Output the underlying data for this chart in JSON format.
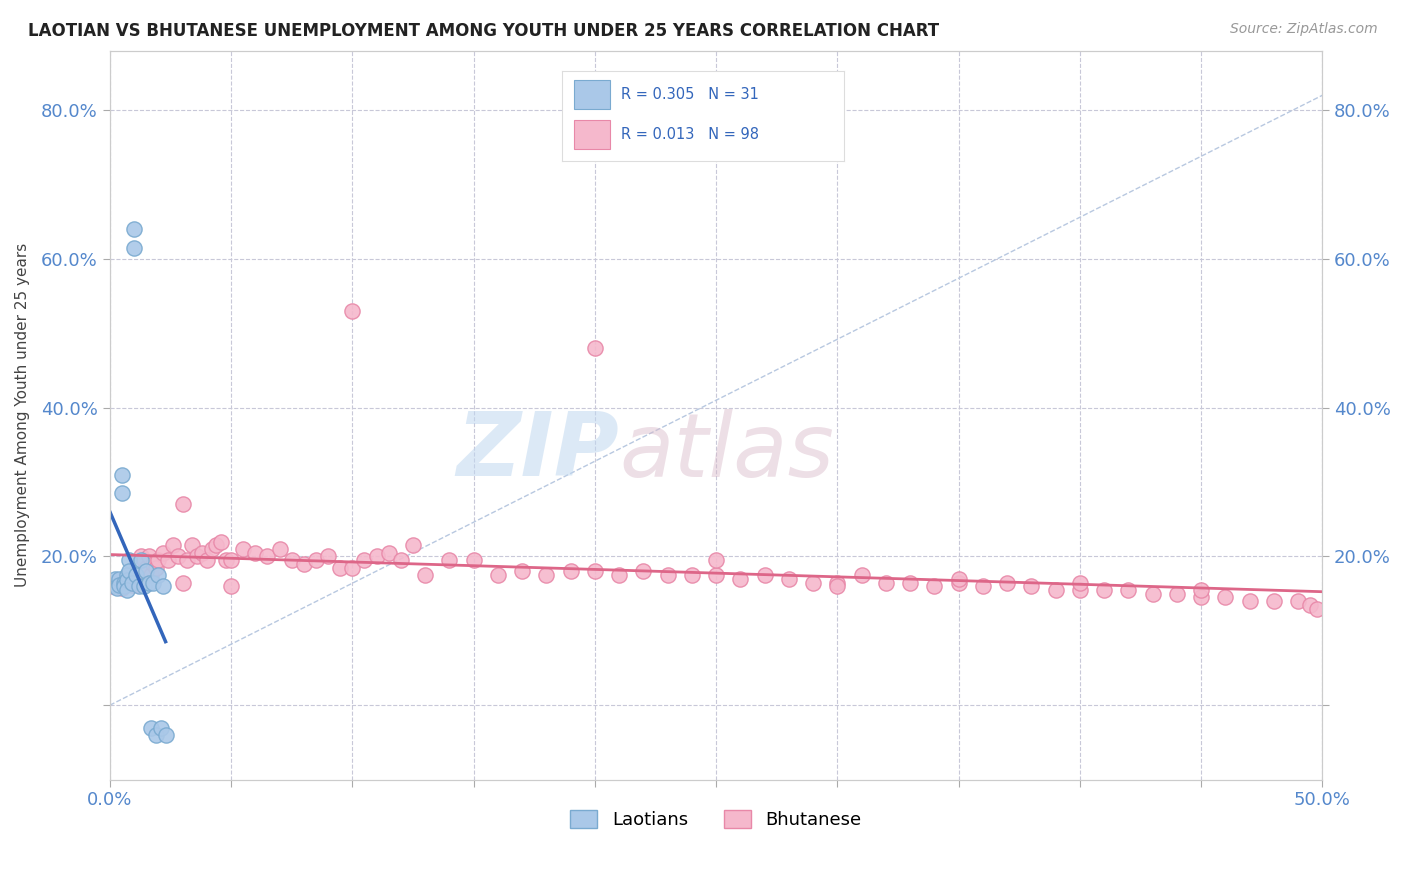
{
  "title": "LAOTIAN VS BHUTANESE UNEMPLOYMENT AMONG YOUTH UNDER 25 YEARS CORRELATION CHART",
  "source": "Source: ZipAtlas.com",
  "ylabel": "Unemployment Among Youth under 25 years",
  "xlim": [
    0.0,
    0.5
  ],
  "ylim": [
    -0.1,
    0.88
  ],
  "laotian_R": 0.305,
  "laotian_N": 31,
  "bhutanese_R": 0.013,
  "bhutanese_N": 98,
  "laotian_color": "#aac8e8",
  "bhutanese_color": "#f5b8cc",
  "laotian_edge_color": "#7aaad0",
  "bhutanese_edge_color": "#e888a8",
  "trend_laotian_color": "#3366bb",
  "trend_bhutanese_color": "#dd6688",
  "background_color": "#ffffff",
  "grid_color": "#cccccc",
  "watermark_zip": "ZIP",
  "watermark_atlas": "atlas",
  "laotian_x": [
    0.001,
    0.002,
    0.003,
    0.003,
    0.004,
    0.004,
    0.005,
    0.005,
    0.006,
    0.006,
    0.007,
    0.007,
    0.007,
    0.008,
    0.008,
    0.009,
    0.01,
    0.01,
    0.011,
    0.012,
    0.013,
    0.014,
    0.015,
    0.016,
    0.017,
    0.018,
    0.019,
    0.02,
    0.021,
    0.022,
    0.023
  ],
  "laotian_y": [
    0.165,
    0.17,
    0.16,
    0.158,
    0.17,
    0.162,
    0.31,
    0.285,
    0.165,
    0.16,
    0.175,
    0.168,
    0.155,
    0.195,
    0.18,
    0.165,
    0.64,
    0.615,
    0.175,
    0.16,
    0.195,
    0.16,
    0.18,
    0.165,
    -0.03,
    0.165,
    -0.04,
    0.175,
    -0.03,
    0.16,
    -0.04
  ],
  "bhutanese_x": [
    0.001,
    0.002,
    0.003,
    0.004,
    0.005,
    0.006,
    0.007,
    0.008,
    0.009,
    0.01,
    0.011,
    0.012,
    0.013,
    0.014,
    0.015,
    0.016,
    0.017,
    0.018,
    0.019,
    0.02,
    0.022,
    0.024,
    0.026,
    0.028,
    0.03,
    0.032,
    0.034,
    0.036,
    0.038,
    0.04,
    0.042,
    0.044,
    0.046,
    0.048,
    0.05,
    0.055,
    0.06,
    0.065,
    0.07,
    0.075,
    0.08,
    0.085,
    0.09,
    0.095,
    0.1,
    0.105,
    0.11,
    0.115,
    0.12,
    0.125,
    0.13,
    0.14,
    0.15,
    0.16,
    0.17,
    0.18,
    0.19,
    0.2,
    0.21,
    0.22,
    0.23,
    0.24,
    0.25,
    0.26,
    0.27,
    0.28,
    0.29,
    0.3,
    0.31,
    0.32,
    0.33,
    0.34,
    0.35,
    0.36,
    0.37,
    0.38,
    0.39,
    0.4,
    0.41,
    0.42,
    0.43,
    0.44,
    0.45,
    0.46,
    0.47,
    0.48,
    0.49,
    0.495,
    0.498,
    0.03,
    0.05,
    0.1,
    0.2,
    0.25,
    0.3,
    0.35,
    0.4,
    0.45
  ],
  "bhutanese_y": [
    0.16,
    0.165,
    0.162,
    0.168,
    0.158,
    0.17,
    0.165,
    0.168,
    0.162,
    0.17,
    0.165,
    0.162,
    0.2,
    0.195,
    0.185,
    0.2,
    0.175,
    0.19,
    0.185,
    0.195,
    0.205,
    0.195,
    0.215,
    0.2,
    0.27,
    0.195,
    0.215,
    0.2,
    0.205,
    0.195,
    0.21,
    0.215,
    0.22,
    0.195,
    0.195,
    0.21,
    0.205,
    0.2,
    0.21,
    0.195,
    0.19,
    0.195,
    0.2,
    0.185,
    0.185,
    0.195,
    0.2,
    0.205,
    0.195,
    0.215,
    0.175,
    0.195,
    0.195,
    0.175,
    0.18,
    0.175,
    0.18,
    0.18,
    0.175,
    0.18,
    0.175,
    0.175,
    0.175,
    0.17,
    0.175,
    0.17,
    0.165,
    0.165,
    0.175,
    0.165,
    0.165,
    0.16,
    0.165,
    0.16,
    0.165,
    0.16,
    0.155,
    0.155,
    0.155,
    0.155,
    0.15,
    0.15,
    0.145,
    0.145,
    0.14,
    0.14,
    0.14,
    0.135,
    0.13,
    0.165,
    0.16,
    0.53,
    0.48,
    0.195,
    0.16,
    0.17,
    0.165,
    0.155
  ],
  "marker_size": 120
}
